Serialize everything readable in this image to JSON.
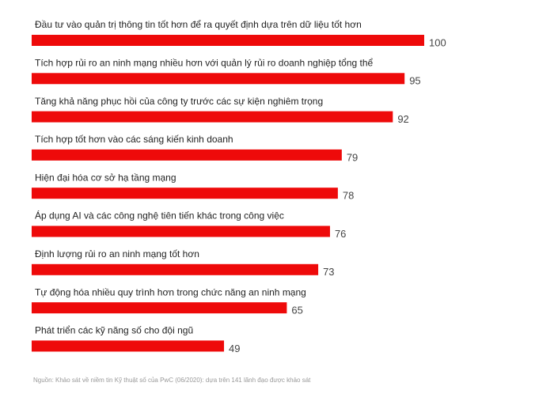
{
  "chart_data": {
    "type": "bar",
    "orientation": "horizontal",
    "color": "#ee0a0a",
    "categories": [
      "Đầu tư vào quản trị thông tin tốt hơn để ra quyết định dựa trên dữ liệu tốt hơn",
      "Tích hợp rủi ro an ninh mạng nhiều hơn với quản lý rủi ro doanh nghiệp tổng thể",
      "Tăng khả năng phục hồi của công ty trước các sự kiện nghiêm trọng",
      "Tích hợp tốt hơn vào các sáng kiến kinh doanh",
      "Hiện đại hóa cơ sở hạ tầng mạng",
      "Áp dụng AI và các công nghệ tiên tiến khác trong công việc",
      "Định lượng rủi ro an ninh mạng tốt hơn",
      "Tự động hóa nhiều quy trình hơn trong chức năng an ninh mạng",
      "Phát triển các kỹ năng số cho đội ngũ"
    ],
    "values": [
      100,
      95,
      92,
      79,
      78,
      76,
      73,
      65,
      49
    ],
    "source": "Nguồn: Khảo sát về niềm tin Kỹ thuật số của PwC (06/2020): dựa trên 141 lãnh đạo được khảo sát"
  }
}
